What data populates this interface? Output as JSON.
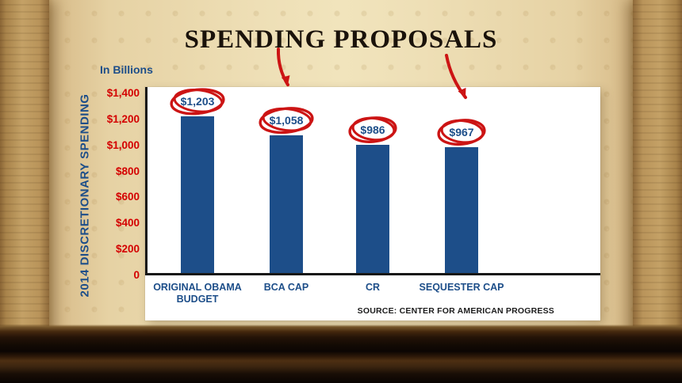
{
  "chart_data": {
    "type": "bar",
    "title": "SPENDING PROPOSALS",
    "units_label": "In Billions",
    "ylabel": "2014 DISCRETIONARY SPENDING",
    "categories": [
      "ORIGINAL OBAMA BUDGET",
      "BCA CAP",
      "CR",
      "SEQUESTER CAP"
    ],
    "values": [
      1203,
      1058,
      986,
      967
    ],
    "value_labels": [
      "$1,203",
      "$1,058",
      "$986",
      "$967"
    ],
    "y_ticks": [
      "$1,400",
      "$1,200",
      "$1,000",
      "$800",
      "$600",
      "$400",
      "$200",
      "0"
    ],
    "y_tick_values": [
      1400,
      1200,
      1000,
      800,
      600,
      400,
      200,
      0
    ],
    "ylim": [
      0,
      1400
    ],
    "grid": false,
    "legend": false,
    "source": "SOURCE: CENTER FOR AMERICAN PROGRESS",
    "bar_color": "#1d4e89",
    "tick_color": "#d40000",
    "annotation_color": "#cc1414",
    "wall_color": "#eedfb6",
    "annotations": [
      "circle-1203",
      "circle-1058",
      "circle-986",
      "circle-967",
      "arrow-bca-cap",
      "arrow-sequester-cap"
    ]
  }
}
